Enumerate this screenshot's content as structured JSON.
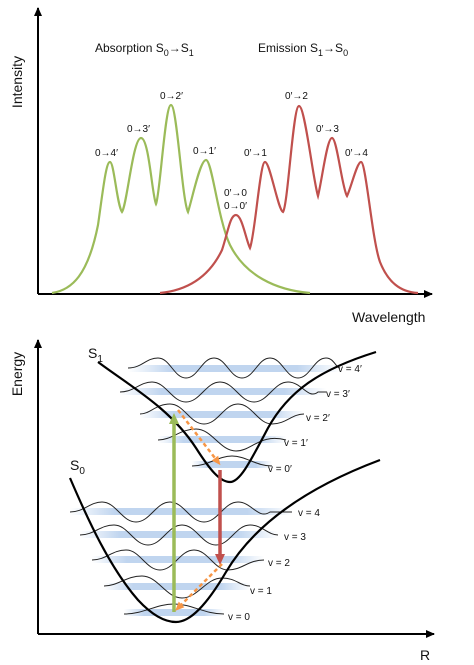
{
  "top_panel": {
    "y_axis_label": "Intensity",
    "x_axis_label": "Wavelength",
    "absorption_title": {
      "prefix": "Absorption S",
      "sub1": "0",
      "arrow": "→",
      "mid": "S",
      "sub2": "1"
    },
    "emission_title": {
      "prefix": "Emission S",
      "sub1": "1",
      "arrow": "→",
      "mid": "S",
      "sub2": "0"
    },
    "absorption_transitions": [
      "0→4′",
      "0→3′",
      "0→2′",
      "0→1′"
    ],
    "emission_transitions": [
      "0′→1",
      "0′→2",
      "0′→3",
      "0′→4"
    ],
    "shared_transition": {
      "line1": "0′→0",
      "line2": "0→0′"
    },
    "colors": {
      "absorption": "#9bbb59",
      "emission": "#c0504d",
      "axis": "#000000"
    }
  },
  "bottom_panel": {
    "y_axis_label": "Energy",
    "x_axis_label": "R",
    "s1_label": {
      "base": "S",
      "sub": "1"
    },
    "s0_label": {
      "base": "S",
      "sub": "0"
    },
    "s1_levels": [
      "v = 4′",
      "v = 3′",
      "v = 2′",
      "v = 1′",
      "v = 0′"
    ],
    "s0_levels": [
      "v = 4",
      "v = 3",
      "v = 2",
      "v = 1",
      "v = 0"
    ],
    "colors": {
      "absorption_arrow": "#9bbb59",
      "emission_arrow": "#c0504d",
      "relaxation_arrow": "#f79646",
      "level_band": "#8db3e2",
      "curve": "#000000"
    }
  }
}
